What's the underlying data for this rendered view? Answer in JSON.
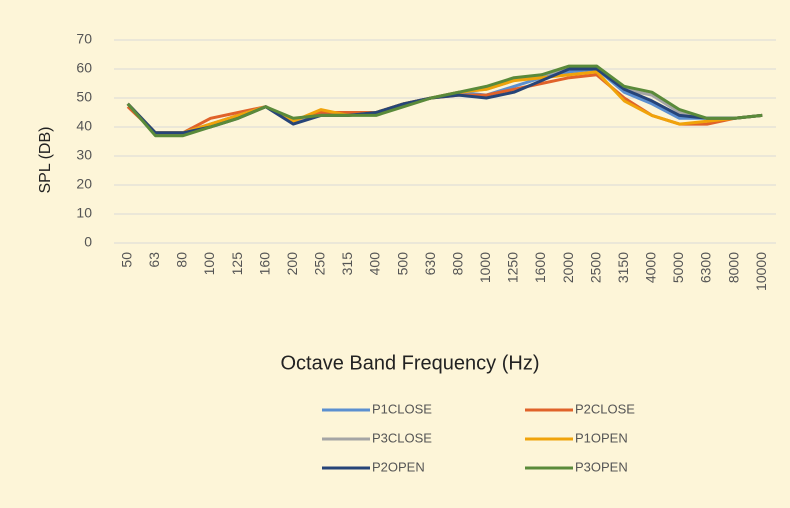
{
  "chart_data": {
    "type": "line",
    "y_label": "SPL (DB)",
    "x_label": "Octave Band Frequency (Hz)",
    "categories": [
      "50",
      "63",
      "80",
      "100",
      "125",
      "160",
      "200",
      "250",
      "315",
      "400",
      "500",
      "630",
      "800",
      "1000",
      "1250",
      "1600",
      "2000",
      "2500",
      "3150",
      "4000",
      "5000",
      "6300",
      "8000",
      "10000"
    ],
    "series": [
      {
        "name": "P1CLOSE",
        "color": "#5b8fd0",
        "values": [
          48,
          38,
          38,
          41,
          44,
          47,
          42,
          44,
          45,
          45,
          48,
          50,
          52,
          51,
          54,
          57,
          59,
          60,
          52,
          48,
          43,
          43,
          43,
          44
        ]
      },
      {
        "name": "P2CLOSE",
        "color": "#e0622a",
        "values": [
          47,
          38,
          38,
          43,
          45,
          47,
          42,
          45,
          45,
          45,
          48,
          50,
          51,
          51,
          53,
          55,
          57,
          58,
          50,
          44,
          41,
          41,
          43,
          44
        ]
      },
      {
        "name": "P3CLOSE",
        "color": "#a5a5a5",
        "values": [
          48,
          38,
          38,
          41,
          44,
          47,
          42,
          44,
          44,
          45,
          48,
          50,
          52,
          53,
          56,
          58,
          60,
          61,
          53,
          51,
          45,
          43,
          43,
          44
        ]
      },
      {
        "name": "P1OPEN",
        "color": "#f0a30a",
        "values": [
          48,
          38,
          38,
          41,
          44,
          47,
          42,
          46,
          44,
          45,
          48,
          50,
          52,
          53,
          56,
          57,
          58,
          59,
          49,
          44,
          41,
          42,
          43,
          44
        ]
      },
      {
        "name": "P2OPEN",
        "color": "#264478",
        "values": [
          48,
          38,
          38,
          40,
          43,
          47,
          41,
          44,
          44,
          45,
          48,
          50,
          51,
          50,
          52,
          56,
          60,
          60,
          53,
          49,
          44,
          43,
          43,
          44
        ]
      },
      {
        "name": "P3OPEN",
        "color": "#5a8a3a",
        "values": [
          48,
          37,
          37,
          40,
          43,
          47,
          43,
          44,
          44,
          44,
          47,
          50,
          52,
          54,
          57,
          58,
          61,
          61,
          54,
          52,
          46,
          43,
          43,
          44
        ]
      }
    ],
    "ylim": [
      0,
      70
    ],
    "yticks": [
      0,
      10,
      20,
      30,
      40,
      50,
      60,
      70
    ],
    "grid": true
  }
}
